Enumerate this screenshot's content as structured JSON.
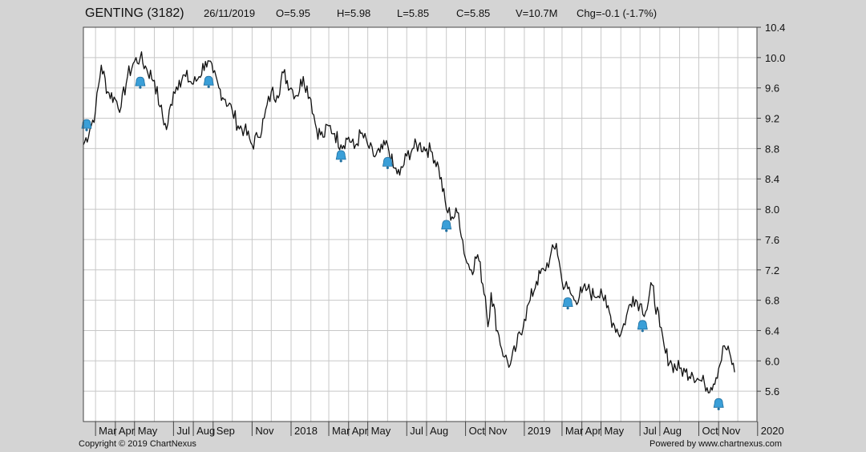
{
  "header": {
    "symbol": "GENTING (3182)",
    "date": "26/11/2019",
    "open": "O=5.95",
    "high": "H=5.98",
    "low": "L=5.85",
    "close": "C=5.85",
    "volume": "V=10.7M",
    "change": "Chg=-0.1 (-1.7%)"
  },
  "footer": {
    "copyright": "Copyright © 2019 ChartNexus",
    "powered": "Powered by www.chartnexus.com"
  },
  "colors": {
    "background": "#d4d4d4",
    "plot": "#ffffff",
    "grid": "#c8c8c8",
    "price": "#111111",
    "alert_icon": "#3a9fd8"
  },
  "chart_data": {
    "type": "line",
    "title": "GENTING (3182)",
    "xlabel": "",
    "ylabel": "",
    "ylim": [
      5.2,
      10.4
    ],
    "xlim": [
      "2017-02-10",
      "2019-12-31"
    ],
    "grid": true,
    "y_axis_side": "right",
    "y_ticks": [
      5.6,
      6.0,
      6.4,
      6.8,
      7.2,
      7.6,
      8.0,
      8.4,
      8.8,
      9.2,
      9.6,
      10.0,
      10.4
    ],
    "x_ticks": [
      {
        "label": "Mar",
        "date": "2017-03-01"
      },
      {
        "label": "Apr",
        "date": "2017-04-01"
      },
      {
        "label": "May",
        "date": "2017-05-01"
      },
      {
        "label": "Jul",
        "date": "2017-07-01"
      },
      {
        "label": "Aug",
        "date": "2017-08-01"
      },
      {
        "label": "Sep",
        "date": "2017-09-01"
      },
      {
        "label": "Nov",
        "date": "2017-11-01"
      },
      {
        "label": "2018",
        "date": "2018-01-01"
      },
      {
        "label": "Mar",
        "date": "2018-03-01"
      },
      {
        "label": "Apr",
        "date": "2018-04-01"
      },
      {
        "label": "May",
        "date": "2018-05-01"
      },
      {
        "label": "Jul",
        "date": "2018-07-01"
      },
      {
        "label": "Aug",
        "date": "2018-08-01"
      },
      {
        "label": "Oct",
        "date": "2018-10-01"
      },
      {
        "label": "Nov",
        "date": "2018-11-01"
      },
      {
        "label": "2019",
        "date": "2019-01-01"
      },
      {
        "label": "Mar",
        "date": "2019-03-01"
      },
      {
        "label": "Apr",
        "date": "2019-04-01"
      },
      {
        "label": "May",
        "date": "2019-05-01"
      },
      {
        "label": "Jul",
        "date": "2019-07-01"
      },
      {
        "label": "Aug",
        "date": "2019-08-01"
      },
      {
        "label": "Oct",
        "date": "2019-10-01"
      },
      {
        "label": "Nov",
        "date": "2019-11-01"
      },
      {
        "label": "2020",
        "date": "2020-01-01"
      }
    ],
    "series": [
      {
        "values": [
          [
            "2017-02-10",
            8.85
          ],
          [
            "2017-02-20",
            9.05
          ],
          [
            "2017-03-01",
            9.3
          ],
          [
            "2017-03-10",
            9.9
          ],
          [
            "2017-03-20",
            9.55
          ],
          [
            "2017-04-01",
            9.45
          ],
          [
            "2017-04-10",
            9.35
          ],
          [
            "2017-04-20",
            9.75
          ],
          [
            "2017-05-01",
            9.95
          ],
          [
            "2017-05-10",
            10.0
          ],
          [
            "2017-05-20",
            9.85
          ],
          [
            "2017-06-01",
            9.7
          ],
          [
            "2017-06-10",
            9.35
          ],
          [
            "2017-06-20",
            9.05
          ],
          [
            "2017-07-01",
            9.55
          ],
          [
            "2017-07-10",
            9.7
          ],
          [
            "2017-07-20",
            9.75
          ],
          [
            "2017-08-01",
            9.65
          ],
          [
            "2017-08-10",
            9.75
          ],
          [
            "2017-08-20",
            9.95
          ],
          [
            "2017-09-01",
            9.8
          ],
          [
            "2017-09-10",
            9.6
          ],
          [
            "2017-09-20",
            9.45
          ],
          [
            "2017-10-01",
            9.3
          ],
          [
            "2017-10-10",
            9.1
          ],
          [
            "2017-10-20",
            9.05
          ],
          [
            "2017-11-01",
            8.85
          ],
          [
            "2017-11-10",
            8.95
          ],
          [
            "2017-11-20",
            9.2
          ],
          [
            "2017-12-01",
            9.55
          ],
          [
            "2017-12-10",
            9.5
          ],
          [
            "2017-12-20",
            9.8
          ],
          [
            "2018-01-01",
            9.6
          ],
          [
            "2018-01-10",
            9.5
          ],
          [
            "2018-01-20",
            9.75
          ],
          [
            "2018-02-01",
            9.45
          ],
          [
            "2018-02-10",
            9.05
          ],
          [
            "2018-02-20",
            8.95
          ],
          [
            "2018-03-01",
            9.1
          ],
          [
            "2018-03-10",
            9.0
          ],
          [
            "2018-03-20",
            8.85
          ],
          [
            "2018-04-01",
            8.95
          ],
          [
            "2018-04-10",
            8.8
          ],
          [
            "2018-04-20",
            9.0
          ],
          [
            "2018-05-01",
            8.85
          ],
          [
            "2018-05-10",
            8.7
          ],
          [
            "2018-05-20",
            8.75
          ],
          [
            "2018-06-01",
            8.85
          ],
          [
            "2018-06-10",
            8.55
          ],
          [
            "2018-06-20",
            8.45
          ],
          [
            "2018-07-01",
            8.7
          ],
          [
            "2018-07-10",
            8.8
          ],
          [
            "2018-07-20",
            8.85
          ],
          [
            "2018-08-01",
            8.8
          ],
          [
            "2018-08-10",
            8.75
          ],
          [
            "2018-08-20",
            8.55
          ],
          [
            "2018-09-01",
            8.0
          ],
          [
            "2018-09-10",
            7.9
          ],
          [
            "2018-09-20",
            7.95
          ],
          [
            "2018-10-01",
            7.35
          ],
          [
            "2018-10-10",
            7.2
          ],
          [
            "2018-10-20",
            7.4
          ],
          [
            "2018-11-01",
            6.85
          ],
          [
            "2018-11-05",
            6.45
          ],
          [
            "2018-11-10",
            6.9
          ],
          [
            "2018-11-20",
            6.4
          ],
          [
            "2018-12-01",
            6.05
          ],
          [
            "2018-12-10",
            5.95
          ],
          [
            "2018-12-20",
            6.2
          ],
          [
            "2019-01-01",
            6.55
          ],
          [
            "2019-01-10",
            6.8
          ],
          [
            "2019-01-20",
            7.05
          ],
          [
            "2019-02-01",
            7.2
          ],
          [
            "2019-02-10",
            7.35
          ],
          [
            "2019-02-20",
            7.55
          ],
          [
            "2019-03-01",
            7.05
          ],
          [
            "2019-03-10",
            6.95
          ],
          [
            "2019-03-20",
            6.8
          ],
          [
            "2019-04-01",
            6.9
          ],
          [
            "2019-04-10",
            6.95
          ],
          [
            "2019-04-20",
            6.85
          ],
          [
            "2019-05-01",
            6.95
          ],
          [
            "2019-05-10",
            6.7
          ],
          [
            "2019-05-20",
            6.5
          ],
          [
            "2019-06-01",
            6.35
          ],
          [
            "2019-06-10",
            6.6
          ],
          [
            "2019-06-20",
            6.85
          ],
          [
            "2019-07-01",
            6.75
          ],
          [
            "2019-07-10",
            6.65
          ],
          [
            "2019-07-20",
            7.0
          ],
          [
            "2019-08-01",
            6.45
          ],
          [
            "2019-08-10",
            6.1
          ],
          [
            "2019-08-20",
            5.95
          ],
          [
            "2019-09-01",
            5.9
          ],
          [
            "2019-09-10",
            5.85
          ],
          [
            "2019-09-20",
            5.85
          ],
          [
            "2019-10-01",
            5.75
          ],
          [
            "2019-10-10",
            5.7
          ],
          [
            "2019-10-20",
            5.65
          ],
          [
            "2019-11-01",
            5.9
          ],
          [
            "2019-11-10",
            6.2
          ],
          [
            "2019-11-20",
            6.05
          ],
          [
            "2019-11-26",
            5.85
          ]
        ]
      }
    ],
    "alerts": [
      [
        "2017-02-15",
        9.12
      ],
      [
        "2017-05-10",
        9.68
      ],
      [
        "2017-08-25",
        9.69
      ],
      [
        "2018-03-20",
        8.71
      ],
      [
        "2018-06-01",
        8.62
      ],
      [
        "2018-09-01",
        7.79
      ],
      [
        "2019-03-10",
        6.77
      ],
      [
        "2019-07-05",
        6.47
      ],
      [
        "2019-11-01",
        5.44
      ]
    ]
  }
}
